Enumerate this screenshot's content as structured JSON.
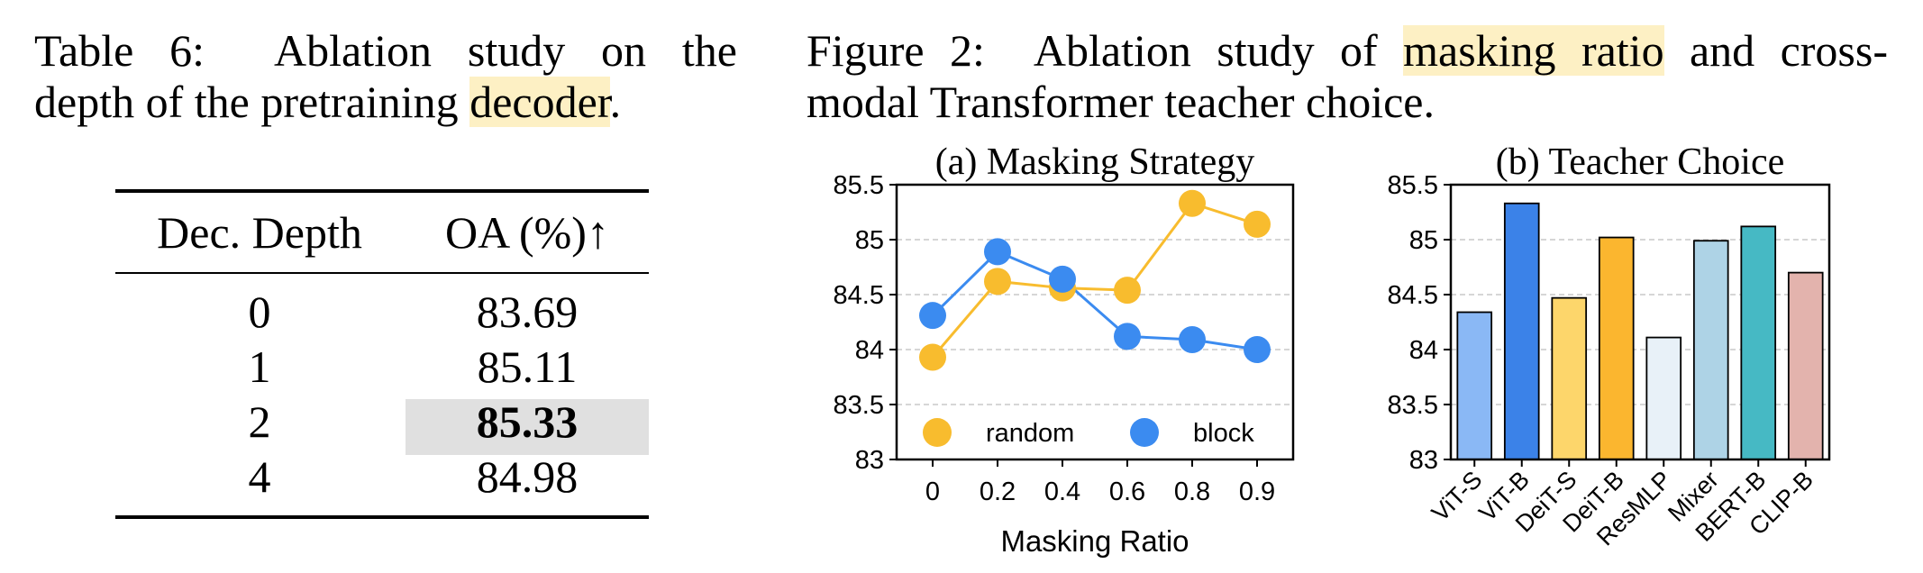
{
  "table": {
    "caption_prefix": "Table 6:",
    "caption_line1": "Ablation study on the",
    "caption_line2_pre": "depth of the pretraining ",
    "caption_highlight": "decoder",
    "caption_line2_post": ".",
    "headers": [
      "Dec. Depth",
      "OA (%)↑"
    ],
    "rows": [
      {
        "depth": "0",
        "oa": "83.69"
      },
      {
        "depth": "1",
        "oa": "85.11"
      },
      {
        "depth": "2",
        "oa": "85.33"
      },
      {
        "depth": "4",
        "oa": "84.98"
      }
    ],
    "highlight_color": "#e0e0e0"
  },
  "figure": {
    "caption_prefix": "Figure 2:",
    "caption_line1_pre": "Ablation study of ",
    "caption_highlight": "masking ratio",
    "caption_line1_post": " and cross-",
    "caption_line2": "modal Transformer teacher choice.",
    "highlight_color": "#fdf0c4"
  },
  "chart_data": [
    {
      "type": "line",
      "title": "(a) Masking Strategy",
      "xlabel": "Masking Ratio",
      "ylabel": "",
      "x": [
        "0",
        "0.2",
        "0.4",
        "0.6",
        "0.8",
        "0.9"
      ],
      "ylim": [
        83,
        85.5
      ],
      "yticks": [
        "83",
        "83.5",
        "84",
        "84.5",
        "85",
        "85.5"
      ],
      "grid": true,
      "legend": "bottom",
      "series": [
        {
          "name": "random",
          "color": "#f8bc2e",
          "values": [
            83.93,
            84.62,
            84.56,
            84.54,
            85.33,
            85.14
          ]
        },
        {
          "name": "block",
          "color": "#3b8bf0",
          "values": [
            84.31,
            84.89,
            84.64,
            84.12,
            84.09,
            84.0
          ]
        }
      ]
    },
    {
      "type": "bar",
      "title": "(b) Teacher Choice",
      "xlabel": "",
      "ylabel": "",
      "categories": [
        "ViT-S",
        "ViT-B",
        "DeiT-S",
        "DeiT-B",
        "ResMLP",
        "Mixer",
        "BERT-B",
        "CLIP-B"
      ],
      "values": [
        84.34,
        85.33,
        84.47,
        85.02,
        84.11,
        84.99,
        85.12,
        84.7
      ],
      "colors": [
        "#8ab8f5",
        "#3b82e8",
        "#fdd66b",
        "#fbb62f",
        "#e8f1f8",
        "#aed3e6",
        "#46b9c4",
        "#e3b3ad"
      ],
      "ylim": [
        83,
        85.5
      ],
      "yticks": [
        "83",
        "83.5",
        "84",
        "84.5",
        "85",
        "85.5"
      ],
      "grid": true
    }
  ]
}
